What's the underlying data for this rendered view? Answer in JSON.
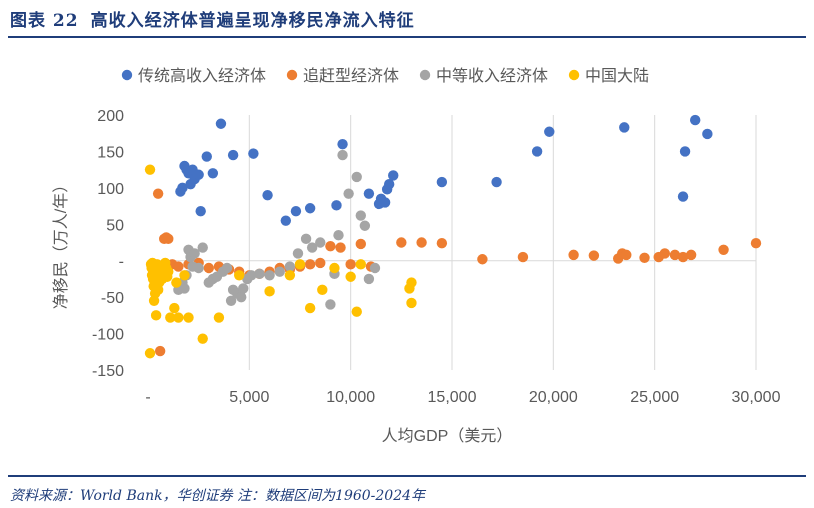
{
  "figure": {
    "label": "图表 22",
    "title": "高收入经济体普遍呈现净移民净流入特征",
    "source": "资料来源：World Bank，华创证券   注：数据区间为1960-2024年"
  },
  "colors": {
    "rule": "#1F3D7A",
    "grid": "#D9D9D9",
    "axis_text": "#595959"
  },
  "chart_data": {
    "type": "scatter",
    "xlabel": "人均GDP（美元）",
    "ylabel": "净移民（万人/年）",
    "xlim": [
      0,
      30000
    ],
    "ylim": [
      -150,
      200
    ],
    "xticks": [
      0,
      5000,
      10000,
      15000,
      20000,
      25000,
      30000
    ],
    "xtick_labels": [
      "-",
      "5,000",
      "10,000",
      "15,000",
      "20,000",
      "25,000",
      "30,000"
    ],
    "yticks": [
      -150,
      -100,
      -50,
      0,
      50,
      100,
      150,
      200
    ],
    "ytick_labels": [
      "-150",
      "-100",
      "-50",
      "-",
      "50",
      "100",
      "150",
      "200"
    ],
    "grid": "vertical",
    "legend": "top",
    "series": [
      {
        "name": "传统高收入经济体",
        "color": "#4472C4",
        "points": [
          [
            1600,
            95
          ],
          [
            1700,
            100
          ],
          [
            1800,
            130
          ],
          [
            1900,
            125
          ],
          [
            2000,
            120
          ],
          [
            2100,
            105
          ],
          [
            2200,
            125
          ],
          [
            2300,
            112
          ],
          [
            2500,
            118
          ],
          [
            2600,
            68
          ],
          [
            2900,
            143
          ],
          [
            3200,
            120
          ],
          [
            3600,
            188
          ],
          [
            4200,
            145
          ],
          [
            5200,
            147
          ],
          [
            5900,
            90
          ],
          [
            6800,
            55
          ],
          [
            7300,
            68
          ],
          [
            8000,
            72
          ],
          [
            9300,
            76
          ],
          [
            9600,
            160
          ],
          [
            10900,
            92
          ],
          [
            11400,
            78
          ],
          [
            11500,
            85
          ],
          [
            11700,
            80
          ],
          [
            11800,
            98
          ],
          [
            11900,
            105
          ],
          [
            12100,
            117
          ],
          [
            14500,
            108
          ],
          [
            17200,
            108
          ],
          [
            19200,
            150
          ],
          [
            19800,
            177
          ],
          [
            23500,
            183
          ],
          [
            26400,
            88
          ],
          [
            26500,
            150
          ],
          [
            27000,
            193
          ],
          [
            27600,
            174
          ]
        ]
      },
      {
        "name": "追赶型经济体",
        "color": "#ED7D31",
        "points": [
          [
            500,
            92
          ],
          [
            600,
            -124
          ],
          [
            700,
            -20
          ],
          [
            800,
            30
          ],
          [
            900,
            32
          ],
          [
            1000,
            30
          ],
          [
            1200,
            -5
          ],
          [
            1500,
            -8
          ],
          [
            2000,
            -5
          ],
          [
            2500,
            -3
          ],
          [
            3000,
            -10
          ],
          [
            3500,
            -8
          ],
          [
            4000,
            -12
          ],
          [
            4500,
            -15
          ],
          [
            5000,
            -20
          ],
          [
            5500,
            -18
          ],
          [
            6000,
            -15
          ],
          [
            6500,
            -10
          ],
          [
            7000,
            -12
          ],
          [
            7500,
            -8
          ],
          [
            8000,
            -5
          ],
          [
            8500,
            -3
          ],
          [
            9000,
            20
          ],
          [
            9500,
            18
          ],
          [
            10000,
            -5
          ],
          [
            10500,
            23
          ],
          [
            11000,
            -8
          ],
          [
            12500,
            25
          ],
          [
            13500,
            25
          ],
          [
            14500,
            24
          ],
          [
            16500,
            2
          ],
          [
            18500,
            5
          ],
          [
            21000,
            8
          ],
          [
            22000,
            7
          ],
          [
            23200,
            3
          ],
          [
            23400,
            10
          ],
          [
            23600,
            8
          ],
          [
            24500,
            4
          ],
          [
            25200,
            5
          ],
          [
            25500,
            10
          ],
          [
            26000,
            8
          ],
          [
            26400,
            5
          ],
          [
            26800,
            8
          ],
          [
            28400,
            15
          ],
          [
            30000,
            24
          ]
        ]
      },
      {
        "name": "中等收入经济体",
        "color": "#A5A5A5",
        "points": [
          [
            1500,
            -40
          ],
          [
            1700,
            -30
          ],
          [
            1800,
            -38
          ],
          [
            1900,
            -20
          ],
          [
            2000,
            15
          ],
          [
            2100,
            5
          ],
          [
            2200,
            -8
          ],
          [
            2300,
            10
          ],
          [
            2500,
            -10
          ],
          [
            2700,
            18
          ],
          [
            3000,
            -30
          ],
          [
            3200,
            -25
          ],
          [
            3400,
            -22
          ],
          [
            3700,
            -15
          ],
          [
            3900,
            -10
          ],
          [
            4100,
            -55
          ],
          [
            4200,
            -40
          ],
          [
            4400,
            -45
          ],
          [
            4600,
            -50
          ],
          [
            4700,
            -38
          ],
          [
            4900,
            -25
          ],
          [
            5100,
            -20
          ],
          [
            5500,
            -18
          ],
          [
            6000,
            -20
          ],
          [
            6500,
            -15
          ],
          [
            7000,
            -8
          ],
          [
            7400,
            10
          ],
          [
            7800,
            30
          ],
          [
            8100,
            18
          ],
          [
            8500,
            25
          ],
          [
            9000,
            -60
          ],
          [
            9200,
            -18
          ],
          [
            9400,
            35
          ],
          [
            9600,
            145
          ],
          [
            9900,
            92
          ],
          [
            10300,
            115
          ],
          [
            10500,
            62
          ],
          [
            10700,
            48
          ],
          [
            10900,
            -25
          ],
          [
            11200,
            -10
          ]
        ]
      },
      {
        "name": "中国大陆",
        "color": "#FFC000",
        "points": [
          [
            100,
            125
          ],
          [
            100,
            -127
          ],
          [
            150,
            -5
          ],
          [
            180,
            -10
          ],
          [
            200,
            -20
          ],
          [
            220,
            -3
          ],
          [
            250,
            -25
          ],
          [
            280,
            -35
          ],
          [
            300,
            -55
          ],
          [
            320,
            -15
          ],
          [
            350,
            -45
          ],
          [
            380,
            -10
          ],
          [
            400,
            -75
          ],
          [
            420,
            -30
          ],
          [
            450,
            -5
          ],
          [
            480,
            -20
          ],
          [
            500,
            -40
          ],
          [
            520,
            -15
          ],
          [
            550,
            -30
          ],
          [
            600,
            -8
          ],
          [
            650,
            -18
          ],
          [
            700,
            -25
          ],
          [
            750,
            -12
          ],
          [
            800,
            -5
          ],
          [
            850,
            -3
          ],
          [
            900,
            -10
          ],
          [
            950,
            -22
          ],
          [
            1000,
            -15
          ],
          [
            1100,
            -78
          ],
          [
            1300,
            -65
          ],
          [
            1400,
            -30
          ],
          [
            1500,
            -78
          ],
          [
            1800,
            -20
          ],
          [
            2000,
            -78
          ],
          [
            2700,
            -107
          ],
          [
            3500,
            -78
          ],
          [
            4500,
            -20
          ],
          [
            6000,
            -42
          ],
          [
            7000,
            -20
          ],
          [
            7500,
            -5
          ],
          [
            8000,
            -65
          ],
          [
            8600,
            -40
          ],
          [
            9200,
            -10
          ],
          [
            10000,
            -22
          ],
          [
            10300,
            -70
          ],
          [
            10500,
            -5
          ],
          [
            12900,
            -38
          ],
          [
            13000,
            -30
          ],
          [
            13000,
            -58
          ]
        ]
      }
    ]
  }
}
